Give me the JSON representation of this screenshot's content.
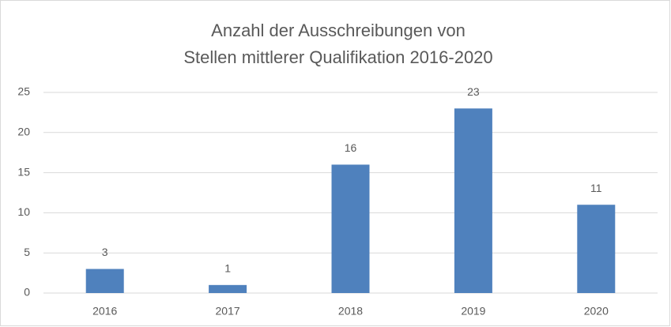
{
  "chart_data": {
    "type": "bar",
    "title": [
      "Anzahl der Ausschreibungen von",
      "Stellen mittlerer Qualifikation 2016-2020"
    ],
    "categories": [
      "2016",
      "2017",
      "2018",
      "2019",
      "2020"
    ],
    "values": [
      3,
      1,
      16,
      23,
      11
    ],
    "color": "#4f81bd",
    "ylim": [
      0,
      25
    ],
    "yticks": [
      0,
      5,
      10,
      15,
      20,
      25
    ],
    "grid": true
  }
}
